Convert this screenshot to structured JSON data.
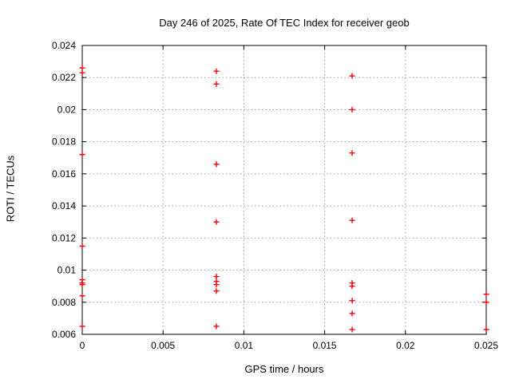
{
  "window": {
    "background": "#ffffff"
  },
  "chart_data": {
    "type": "scatter",
    "title": "Day 246 of 2025, Rate Of TEC Index for receiver geob",
    "xlabel": "GPS time / hours",
    "ylabel": "ROTI / TECUs",
    "xlim": [
      0,
      0.025
    ],
    "ylim": [
      0.006,
      0.024
    ],
    "xticks": [
      0,
      0.005,
      0.01,
      0.015,
      0.02,
      0.025
    ],
    "xtick_labels": [
      "0",
      "0.005",
      "0.01",
      "0.015",
      "0.02",
      "0.025"
    ],
    "yticks": [
      0.006,
      0.008,
      0.01,
      0.012,
      0.014,
      0.016,
      0.018,
      0.02,
      0.022,
      0.024
    ],
    "ytick_labels": [
      "0.006",
      "0.008",
      "0.01",
      "0.012",
      "0.014",
      "0.016",
      "0.018",
      "0.02",
      "0.022",
      "0.024"
    ],
    "grid": true,
    "legend_position": "none",
    "marker": "plus",
    "marker_color": "#ff0000",
    "grid_color": "#9e9e9e",
    "frame_color": "#000000",
    "series": [
      {
        "name": "ROTI",
        "points": [
          [
            0,
            0.0226
          ],
          [
            0,
            0.0223
          ],
          [
            0,
            0.0172
          ],
          [
            0,
            0.0115
          ],
          [
            0,
            0.0094
          ],
          [
            0,
            0.0092
          ],
          [
            0,
            0.0091
          ],
          [
            0,
            0.0084
          ],
          [
            0,
            0.0065
          ],
          [
            0.0083,
            0.0224
          ],
          [
            0.0083,
            0.0216
          ],
          [
            0.0083,
            0.0166
          ],
          [
            0.0083,
            0.013
          ],
          [
            0.0083,
            0.0096
          ],
          [
            0.0083,
            0.0093
          ],
          [
            0.0083,
            0.0091
          ],
          [
            0.0083,
            0.0087
          ],
          [
            0.0083,
            0.0065
          ],
          [
            0.0167,
            0.0221
          ],
          [
            0.0167,
            0.02
          ],
          [
            0.0167,
            0.0173
          ],
          [
            0.0167,
            0.0131
          ],
          [
            0.0167,
            0.0092
          ],
          [
            0.0167,
            0.009
          ],
          [
            0.0167,
            0.0081
          ],
          [
            0.0167,
            0.0073
          ],
          [
            0.0167,
            0.0063
          ],
          [
            0.025,
            0.0085
          ],
          [
            0.025,
            0.008
          ],
          [
            0.025,
            0.0063
          ]
        ]
      }
    ]
  }
}
